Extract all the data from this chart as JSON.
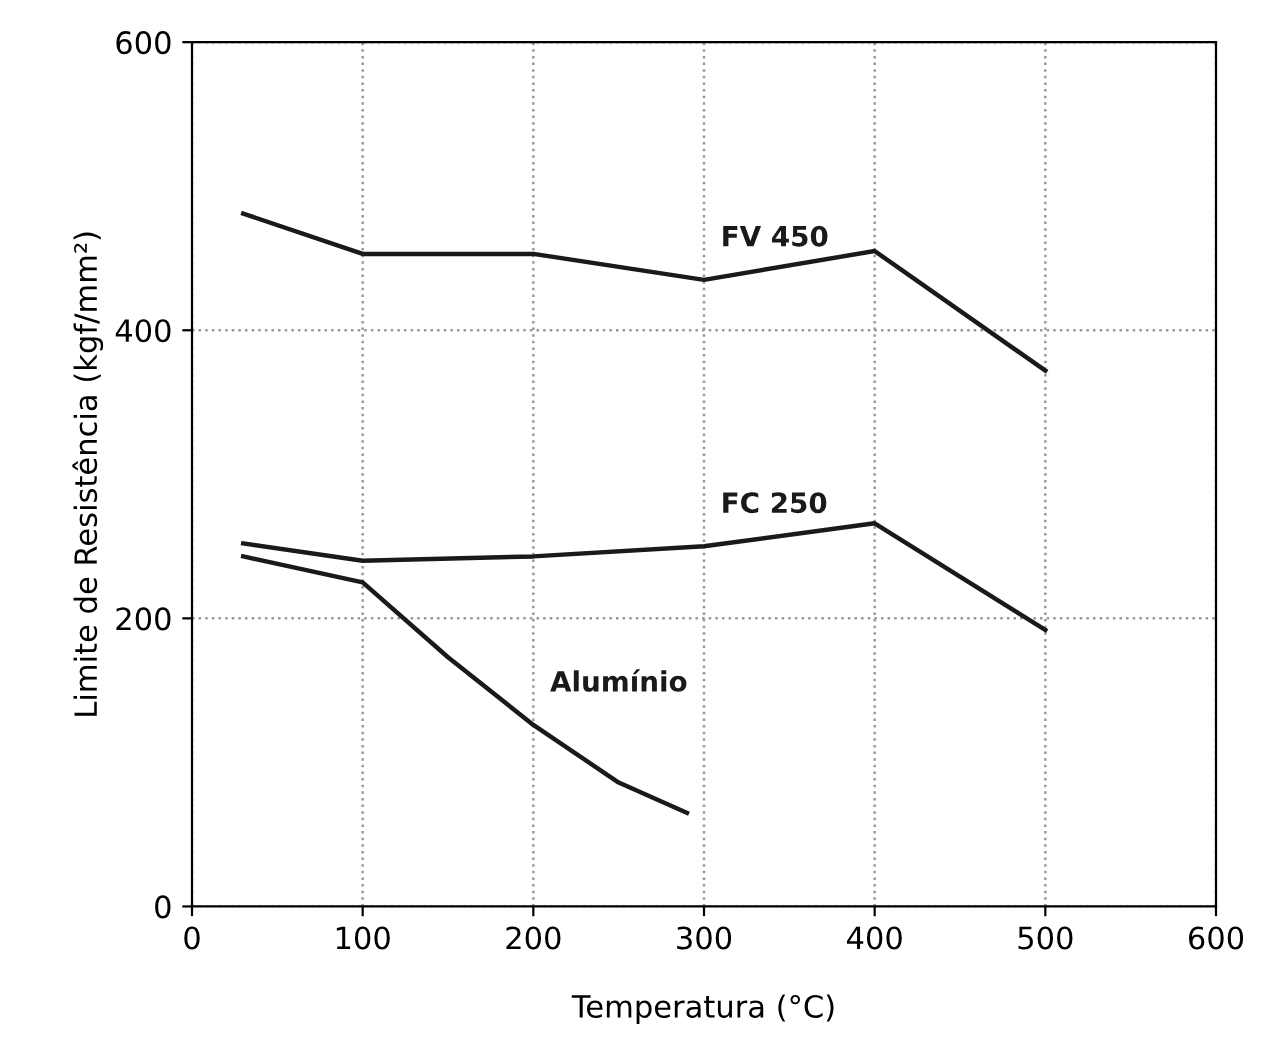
{
  "chart_data": {
    "type": "line",
    "xlabel": "Temperatura (°C)",
    "ylabel": "Limite de Resistência (kgf/mm²)",
    "xlim": [
      0,
      600
    ],
    "ylim": [
      0,
      600
    ],
    "xticks": [
      0,
      100,
      200,
      300,
      400,
      500,
      600
    ],
    "yticks": [
      0,
      200,
      400,
      600
    ],
    "grid": true,
    "marker": "none",
    "line_style": "solid",
    "series": [
      {
        "name": "FV 450",
        "color": "#1a1a1a",
        "x": [
          30,
          100,
          200,
          300,
          400,
          500
        ],
        "values": [
          481,
          453,
          453,
          435,
          455,
          372
        ]
      },
      {
        "name": "FC 250",
        "color": "#1a1a1a",
        "x": [
          30,
          100,
          200,
          300,
          400,
          500
        ],
        "values": [
          252,
          240,
          243,
          250,
          266,
          192
        ]
      },
      {
        "name": "Alumínio",
        "color": "#1a1a1a",
        "x": [
          30,
          100,
          150,
          200,
          250,
          290
        ],
        "values": [
          243,
          225,
          173,
          126,
          86,
          65
        ]
      }
    ]
  }
}
